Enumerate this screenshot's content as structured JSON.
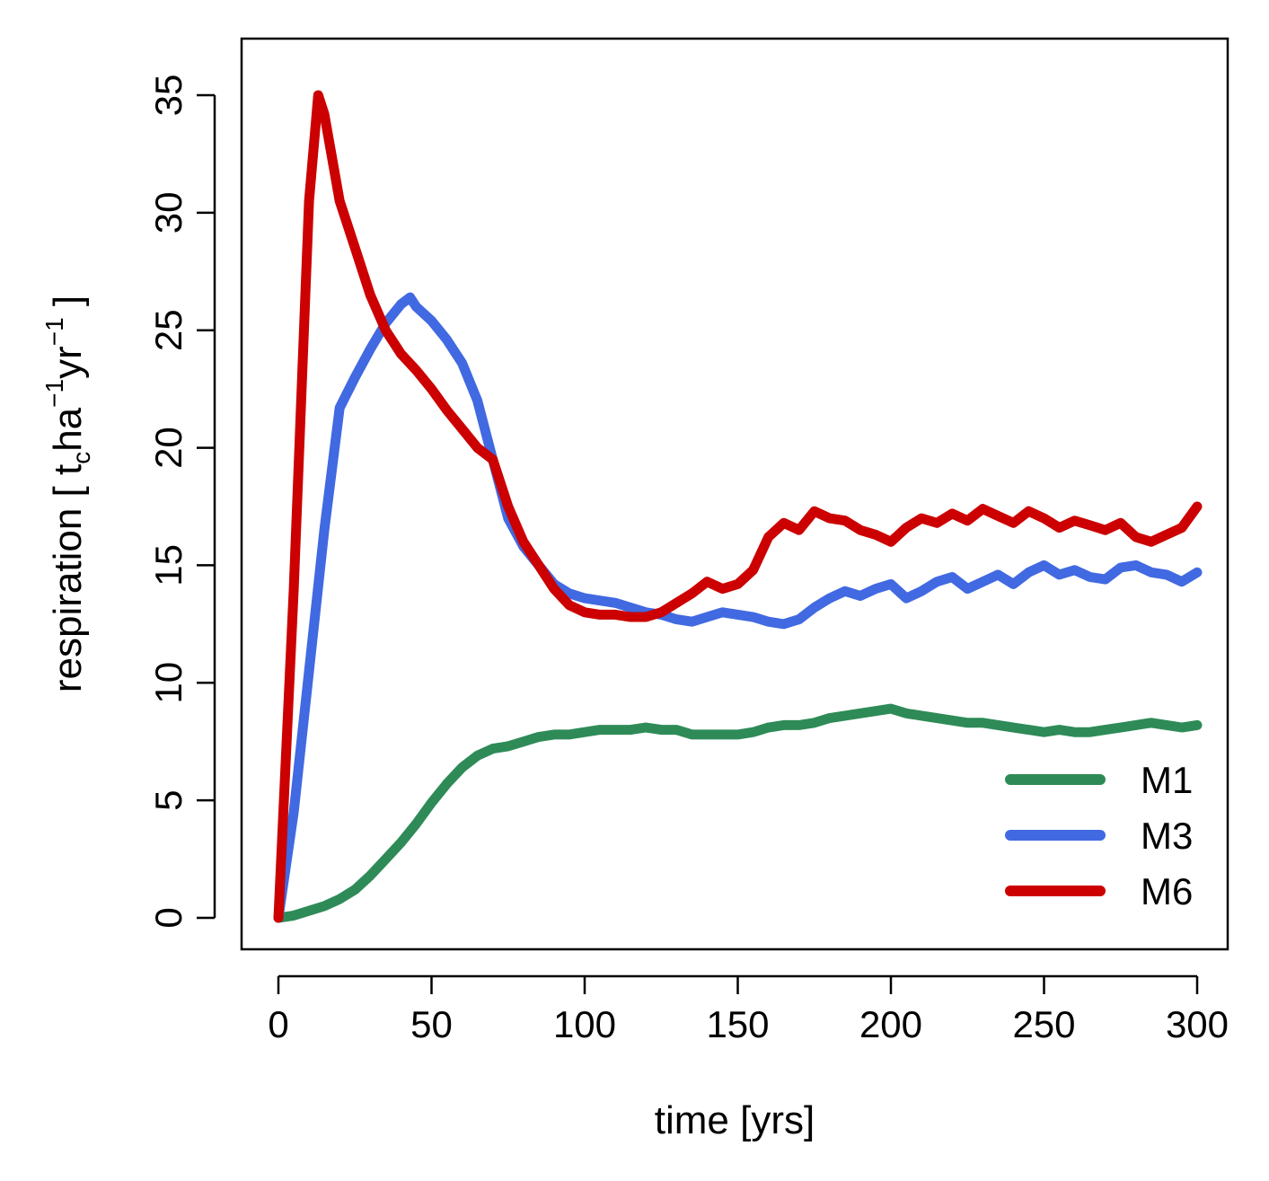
{
  "chart_data": {
    "type": "line",
    "title": "",
    "xlabel": "time [yrs]",
    "ylabel_parts": {
      "prefix": "respiration [ t",
      "sub": "c",
      "mid": "ha",
      "sup1": "−1",
      "mid2": "yr",
      "sup2": "−1",
      "suffix": " ]"
    },
    "xlim": [
      0,
      300
    ],
    "ylim": [
      0,
      35
    ],
    "xticks": [
      0,
      50,
      100,
      150,
      200,
      250,
      300
    ],
    "yticks": [
      0,
      5,
      10,
      15,
      20,
      25,
      30,
      35
    ],
    "xtick_labels": [
      "0",
      "50",
      "100",
      "150",
      "200",
      "250",
      "300"
    ],
    "ytick_labels": [
      "0",
      "5",
      "10",
      "15",
      "20",
      "25",
      "30",
      "35"
    ],
    "grid": false,
    "legend_position": "bottom-right",
    "series": [
      {
        "name": "M1",
        "color": "#2e8b57",
        "x": [
          0,
          5,
          10,
          15,
          20,
          25,
          30,
          35,
          40,
          45,
          50,
          55,
          60,
          65,
          70,
          75,
          80,
          85,
          90,
          95,
          100,
          105,
          110,
          115,
          120,
          125,
          130,
          135,
          140,
          145,
          150,
          155,
          160,
          165,
          170,
          175,
          180,
          185,
          190,
          195,
          200,
          205,
          210,
          215,
          220,
          225,
          230,
          235,
          240,
          245,
          250,
          255,
          260,
          265,
          270,
          275,
          280,
          285,
          290,
          295,
          300
        ],
        "values": [
          0,
          0.1,
          0.3,
          0.5,
          0.8,
          1.2,
          1.8,
          2.5,
          3.2,
          4.0,
          4.9,
          5.7,
          6.4,
          6.9,
          7.2,
          7.3,
          7.5,
          7.7,
          7.8,
          7.8,
          7.9,
          8.0,
          8.0,
          8.0,
          8.1,
          8.0,
          8.0,
          7.8,
          7.8,
          7.8,
          7.8,
          7.9,
          8.1,
          8.2,
          8.2,
          8.3,
          8.5,
          8.6,
          8.7,
          8.8,
          8.9,
          8.7,
          8.6,
          8.5,
          8.4,
          8.3,
          8.3,
          8.2,
          8.1,
          8.0,
          7.9,
          8.0,
          7.9,
          7.9,
          8.0,
          8.1,
          8.2,
          8.3,
          8.2,
          8.1,
          8.2
        ]
      },
      {
        "name": "M3",
        "color": "#4169e1",
        "x": [
          0,
          5,
          10,
          15,
          20,
          25,
          30,
          35,
          40,
          43,
          45,
          50,
          55,
          60,
          65,
          70,
          75,
          80,
          85,
          90,
          95,
          100,
          105,
          110,
          115,
          120,
          125,
          130,
          135,
          140,
          145,
          150,
          155,
          160,
          165,
          170,
          175,
          180,
          185,
          190,
          195,
          200,
          205,
          210,
          215,
          220,
          225,
          230,
          235,
          240,
          245,
          250,
          255,
          260,
          265,
          270,
          275,
          280,
          285,
          290,
          295,
          300
        ],
        "values": [
          0,
          4.5,
          10.5,
          16.5,
          21.7,
          23.0,
          24.2,
          25.3,
          26.1,
          26.4,
          26.0,
          25.4,
          24.6,
          23.6,
          22.0,
          19.5,
          17.0,
          15.8,
          15.0,
          14.2,
          13.8,
          13.6,
          13.5,
          13.4,
          13.2,
          13.0,
          12.9,
          12.7,
          12.6,
          12.8,
          13.0,
          12.9,
          12.8,
          12.6,
          12.5,
          12.7,
          13.2,
          13.6,
          13.9,
          13.7,
          14.0,
          14.2,
          13.6,
          13.9,
          14.3,
          14.5,
          14.0,
          14.3,
          14.6,
          14.2,
          14.7,
          15.0,
          14.6,
          14.8,
          14.5,
          14.4,
          14.9,
          15.0,
          14.7,
          14.6,
          14.3,
          14.7
        ]
      },
      {
        "name": "M6",
        "color": "#cc0000",
        "x": [
          0,
          5,
          10,
          13,
          15,
          20,
          25,
          30,
          35,
          40,
          45,
          50,
          55,
          60,
          65,
          70,
          75,
          80,
          85,
          90,
          95,
          100,
          105,
          110,
          115,
          120,
          125,
          130,
          135,
          140,
          145,
          150,
          155,
          160,
          165,
          170,
          175,
          180,
          185,
          190,
          195,
          200,
          205,
          210,
          215,
          220,
          225,
          230,
          235,
          240,
          245,
          250,
          255,
          260,
          265,
          270,
          275,
          280,
          285,
          290,
          295,
          300
        ],
        "values": [
          0,
          14.0,
          30.5,
          35.0,
          34.2,
          30.5,
          28.5,
          26.5,
          25.0,
          24.0,
          23.3,
          22.5,
          21.6,
          20.8,
          20.0,
          19.5,
          17.5,
          16.0,
          15.0,
          14.0,
          13.3,
          13.0,
          12.9,
          12.9,
          12.8,
          12.8,
          13.0,
          13.4,
          13.8,
          14.3,
          14.0,
          14.2,
          14.8,
          16.2,
          16.8,
          16.5,
          17.3,
          17.0,
          16.9,
          16.5,
          16.3,
          16.0,
          16.6,
          17.0,
          16.8,
          17.2,
          16.9,
          17.4,
          17.1,
          16.8,
          17.3,
          17.0,
          16.6,
          16.9,
          16.7,
          16.5,
          16.8,
          16.2,
          16.0,
          16.3,
          16.6,
          17.5
        ]
      }
    ]
  }
}
